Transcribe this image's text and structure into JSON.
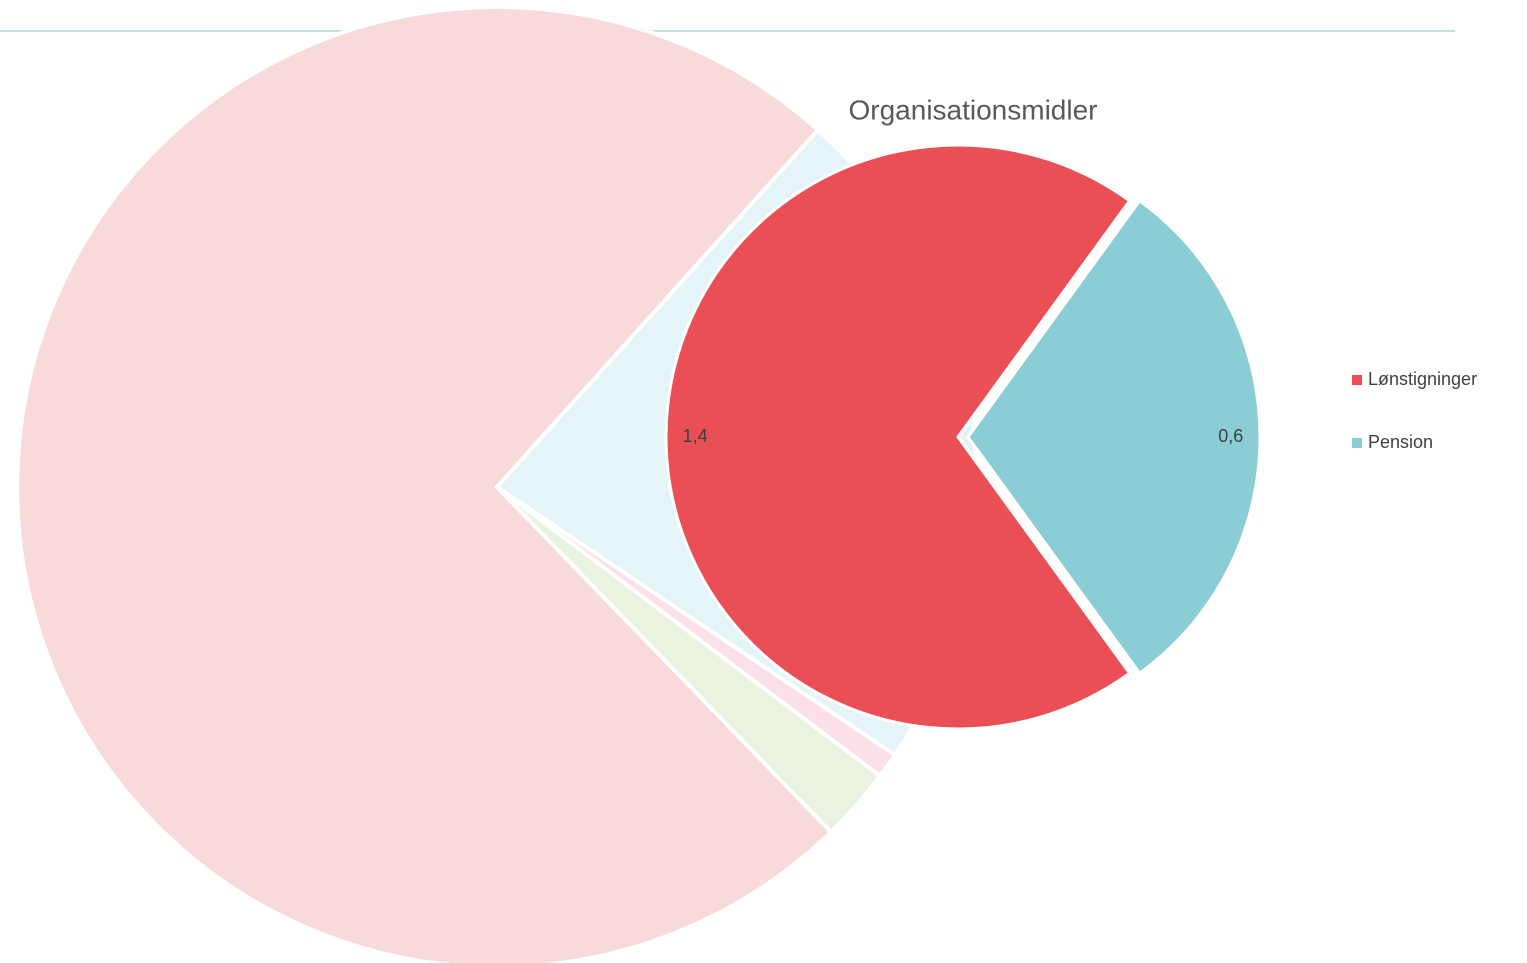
{
  "chart_data": {
    "type": "pie",
    "title": "Organisationsmidler",
    "categories": [
      "Lønstigninger",
      "Pension"
    ],
    "values": [
      1.4,
      0.6
    ],
    "value_labels": [
      "1,4",
      "0,6"
    ],
    "colors": [
      "#e94f54",
      "#8acdd4"
    ],
    "legend": "right"
  }
}
